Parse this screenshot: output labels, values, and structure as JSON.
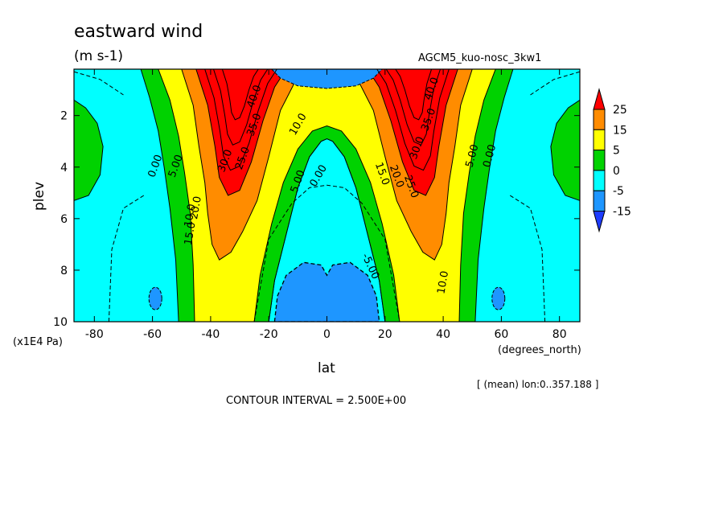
{
  "chart_data": {
    "type": "heatmap",
    "subtype": "filled contour (latitude-pressure cross section)",
    "title": "eastward wind",
    "units": "(m s-1)",
    "dataset": "AGCM5_kuo-nosc_3kw1",
    "xlabel": "lat",
    "xunit": "(degrees_north)",
    "ylabel": "plev",
    "yunit": "(x1E4 Pa)",
    "xlim": [
      -87,
      87
    ],
    "ylim": [
      10,
      0.2
    ],
    "x_ticks": [
      -80,
      -60,
      -40,
      -20,
      0,
      20,
      40,
      60,
      80
    ],
    "y_ticks": [
      2,
      4,
      6,
      8,
      10
    ],
    "average_note": "[ (mean) lon:0..357.188 ]",
    "contour_interval_text": "CONTOUR INTERVAL = 2.500E+00",
    "contour_interval": 2.5,
    "colorbar": {
      "labels": [
        "25",
        "15",
        "5",
        "0",
        "-5",
        "-15"
      ],
      "colors": [
        "#ff0000",
        "#ff8c00",
        "#ffff00",
        "#00d200",
        "#00ffff",
        "#1e96ff",
        "#1e3cff"
      ],
      "levels": [
        -15,
        -5,
        0,
        5,
        15,
        25
      ]
    },
    "jets": [
      {
        "lat": -30,
        "plev": 1.2,
        "u_max": 40
      },
      {
        "lat": 30,
        "plev": 1.2,
        "u_max": 40
      }
    ],
    "contour_labels": [
      "0.00",
      "5.00",
      "10.0",
      "15.0",
      "20.0",
      "25.0",
      "30.0",
      "35.0",
      "40.0",
      "-5.00"
    ]
  }
}
